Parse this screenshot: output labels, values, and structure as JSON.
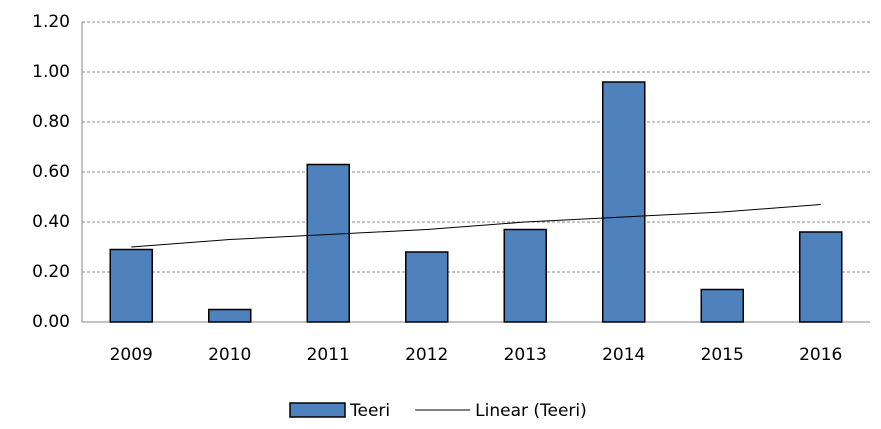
{
  "chart_data": {
    "type": "bar",
    "categories": [
      "2009",
      "2010",
      "2011",
      "2012",
      "2013",
      "2014",
      "2015",
      "2016"
    ],
    "series": [
      {
        "name": "Teeri",
        "type": "bar",
        "color": "#4f81bd",
        "values": [
          0.29,
          0.05,
          0.63,
          0.28,
          0.37,
          0.96,
          0.13,
          0.36
        ]
      },
      {
        "name": "Linear (Teeri)",
        "type": "line",
        "color": "#000000",
        "values": [
          0.3,
          0.33,
          0.35,
          0.37,
          0.4,
          0.42,
          0.44,
          0.47
        ]
      }
    ],
    "ylim": [
      0,
      1.2
    ],
    "yticks": [
      {
        "value": 0,
        "label": "0.00"
      },
      {
        "value": 0.2,
        "label": "0.20"
      },
      {
        "value": 0.4,
        "label": "0.40"
      },
      {
        "value": 0.6,
        "label": "0.60"
      },
      {
        "value": 0.8,
        "label": "0.80"
      },
      {
        "value": 1.0,
        "label": "1.00"
      },
      {
        "value": 1.2,
        "label": "1.20"
      }
    ],
    "grid": true,
    "legend": "bottom"
  }
}
